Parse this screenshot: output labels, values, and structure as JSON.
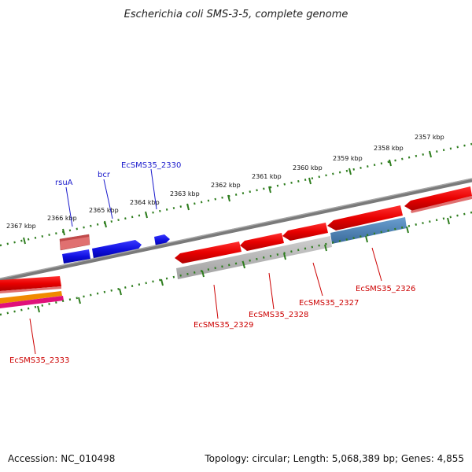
{
  "title": "Escherichia coli SMS-3-5, complete genome",
  "footer": {
    "accession": "Accession: NC_010498",
    "summary": "Topology: circular; Length: 5,068,389 bp; Genes: 4,855"
  },
  "colors": {
    "tick": "#2e7d1e",
    "backbone": "#7a7a7a",
    "forward_gene": "#1010e0",
    "forward_label": "#1a1acc",
    "reverse_gene": "#e00000",
    "reverse_label": "#cc0000",
    "grey_feature": "#b8b8b8",
    "blue_feature": "#4a7fb5",
    "pink_feature": "#e07070",
    "orange_feature": "#f08a00",
    "magenta_feature": "#e0107a"
  },
  "ticks": {
    "upper_labels": [
      "2367 kbp",
      "2366 kbp",
      "2365 kbp",
      "2364 kbp",
      "2363 kbp",
      "2362 kbp",
      "2361 kbp",
      "2360 kbp",
      "2359 kbp",
      "2358 kbp",
      "2357 kbp"
    ]
  },
  "genes": {
    "forward": [
      "rsuA",
      "bcr",
      "EcSMS35_2330"
    ],
    "reverse": [
      "EcSMS35_2329",
      "EcSMS35_2328",
      "EcSMS35_2327",
      "EcSMS35_2326",
      "EcSMS35_2333"
    ]
  }
}
